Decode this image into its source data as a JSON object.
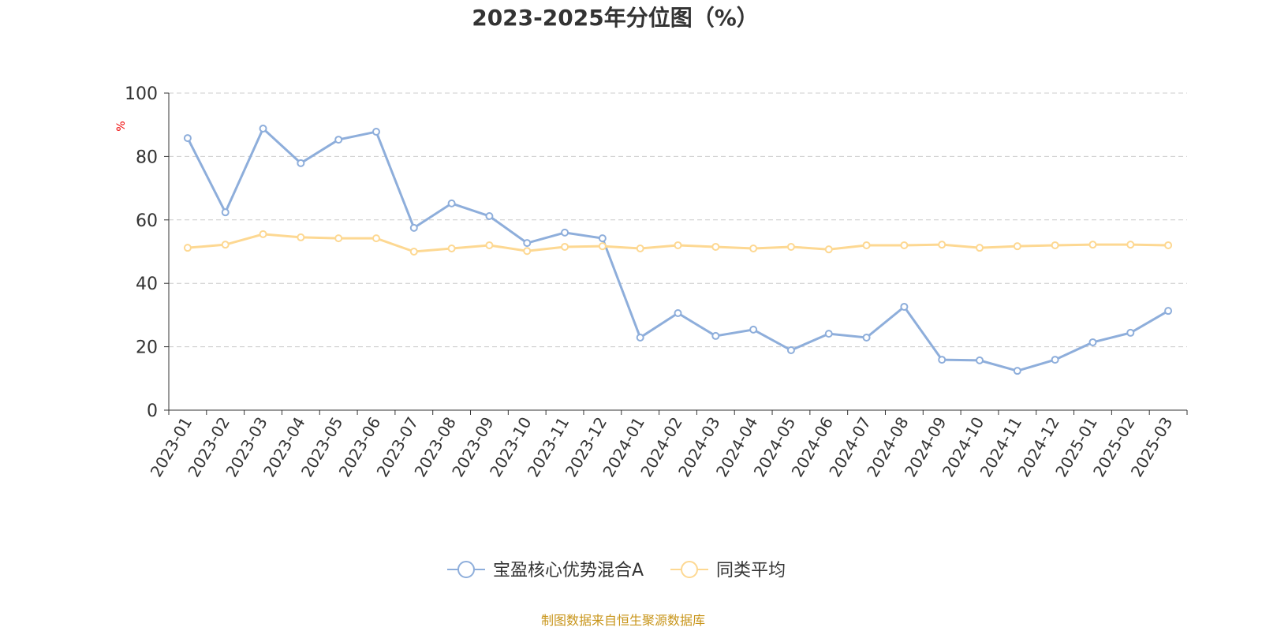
{
  "chart_data": {
    "type": "line",
    "title": "2023-2025年分位图（%）",
    "ylabel": "%",
    "xlabel": "",
    "ylim": [
      0,
      100
    ],
    "yticks": [
      0,
      20,
      40,
      60,
      80,
      100
    ],
    "grid": true,
    "legend_position": "bottom-center",
    "categories": [
      "2023-01",
      "2023-02",
      "2023-03",
      "2023-04",
      "2023-05",
      "2023-06",
      "2023-07",
      "2023-08",
      "2023-09",
      "2023-10",
      "2023-11",
      "2023-12",
      "2024-01",
      "2024-02",
      "2024-03",
      "2024-04",
      "2024-05",
      "2024-06",
      "2024-07",
      "2024-08",
      "2024-09",
      "2024-10",
      "2024-11",
      "2024-12",
      "2025-01",
      "2025-02",
      "2025-03"
    ],
    "series": [
      {
        "name": "宝盈核心优势混合A",
        "color": "#8eaedb",
        "values": [
          85.8,
          62.4,
          88.8,
          77.9,
          85.3,
          87.8,
          57.5,
          65.2,
          61.2,
          52.7,
          56.0,
          54.2,
          22.9,
          30.6,
          23.4,
          25.4,
          18.9,
          24.1,
          22.9,
          32.6,
          15.9,
          15.7,
          12.4,
          15.9,
          21.4,
          24.4,
          31.3
        ]
      },
      {
        "name": "同类平均",
        "color": "#fdd892",
        "values": [
          51.2,
          52.2,
          55.5,
          54.5,
          54.2,
          54.2,
          50.0,
          51.0,
          52.0,
          50.2,
          51.5,
          51.7,
          51.0,
          52.0,
          51.5,
          51.0,
          51.5,
          50.7,
          52.0,
          52.0,
          52.2,
          51.2,
          51.7,
          52.0,
          52.2,
          52.2,
          52.0
        ]
      }
    ],
    "source": "制图数据来自恒生聚源数据库"
  }
}
